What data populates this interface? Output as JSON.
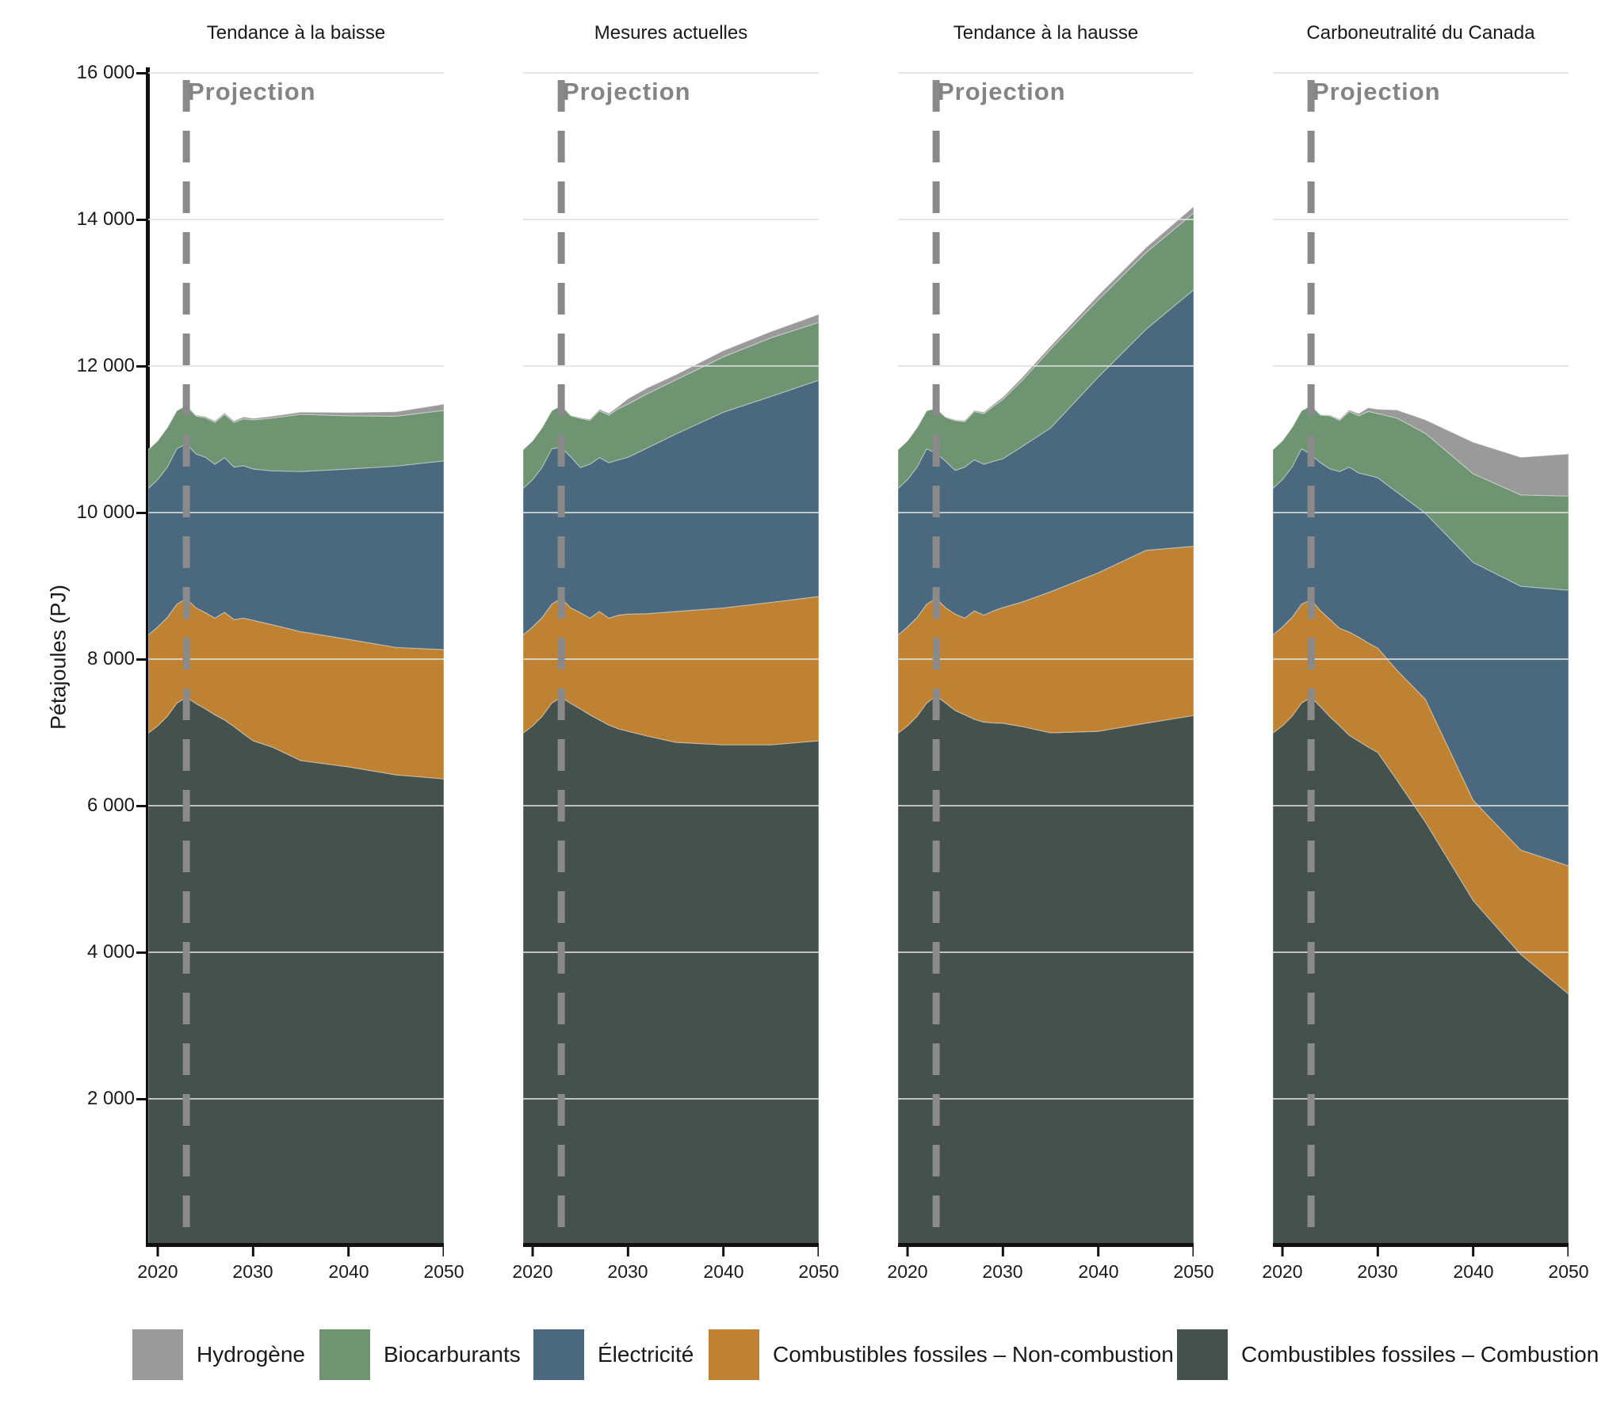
{
  "projection": {
    "label": "Projection",
    "start_year": 2023
  },
  "y_axis": {
    "title": "Pétajoules (PJ)",
    "ticks": [
      "16 000",
      "14 000",
      "12 000",
      "10 000",
      "8 000",
      "6 000",
      "4 000",
      "2 000"
    ]
  },
  "x_axis": {
    "ticks": [
      "2020",
      "2030",
      "2040",
      "2050"
    ]
  },
  "colors": {
    "gridline": "#e0e0e0",
    "axis": "#111111",
    "projection_line": "#8a8a8a",
    "projection_text": "#848484"
  },
  "legend": [
    {
      "id": "hydrogene",
      "label": "Hydrogène",
      "color": "#9a9a9a"
    },
    {
      "id": "biocarburants",
      "label": "Biocarburants",
      "color": "#6e9471"
    },
    {
      "id": "electricite",
      "label": "Électricité",
      "color": "#4a697e"
    },
    {
      "id": "fossiles_non_combustion",
      "label": "Combustibles fossiles – Non-combustion",
      "color": "#bf8132"
    },
    {
      "id": "fossiles_combustion",
      "label": "Combustibles fossiles – Combustion",
      "color": "#45514c"
    }
  ],
  "chart_data": {
    "type": "area",
    "stacked": true,
    "ylabel": "Pétajoules (PJ)",
    "ylim": [
      0,
      16000
    ],
    "y_gridlines": [
      2000,
      4000,
      6000,
      8000,
      10000,
      12000,
      14000,
      16000
    ],
    "x": [
      2019,
      2020,
      2021,
      2022,
      2023,
      2024,
      2025,
      2026,
      2027,
      2028,
      2029,
      2030,
      2032,
      2035,
      2040,
      2045,
      2050
    ],
    "x_range": [
      2019,
      2050
    ],
    "x_ticks": [
      2020,
      2030,
      2040,
      2050
    ],
    "projection_start_year": 2023,
    "stack_order_bottom_to_top": [
      "fossiles_combustion",
      "fossiles_non_combustion",
      "electricite",
      "biocarburants",
      "hydrogene"
    ],
    "units": "PJ",
    "panels": [
      {
        "title": "Tendance à la baisse",
        "values": {
          "fossiles_combustion": [
            6990,
            7090,
            7220,
            7400,
            7480,
            7395,
            7320,
            7240,
            7170,
            7080,
            6980,
            6885,
            6800,
            6615,
            6530,
            6420,
            6365
          ],
          "fossiles_non_combustion": [
            1340,
            1350,
            1350,
            1350,
            1350,
            1305,
            1315,
            1320,
            1470,
            1460,
            1580,
            1645,
            1670,
            1760,
            1740,
            1740,
            1765
          ],
          "electricite": [
            2000,
            2010,
            2050,
            2120,
            2110,
            2100,
            2120,
            2100,
            2110,
            2080,
            2080,
            2065,
            2100,
            2185,
            2325,
            2475,
            2575
          ],
          "biocarburants": [
            530,
            530,
            540,
            520,
            520,
            520,
            540,
            570,
            590,
            610,
            640,
            670,
            720,
            780,
            725,
            680,
            690
          ],
          "hydrogene": [
            0,
            0,
            0,
            0,
            5,
            10,
            15,
            20,
            20,
            20,
            25,
            20,
            25,
            30,
            45,
            60,
            85
          ]
        }
      },
      {
        "title": "Mesures actuelles",
        "values": {
          "fossiles_combustion": [
            6990,
            7090,
            7220,
            7400,
            7480,
            7395,
            7320,
            7240,
            7170,
            7100,
            7050,
            7015,
            6950,
            6865,
            6830,
            6830,
            6885
          ],
          "fossiles_non_combustion": [
            1340,
            1350,
            1350,
            1350,
            1350,
            1305,
            1315,
            1320,
            1480,
            1460,
            1550,
            1600,
            1670,
            1785,
            1870,
            1945,
            1970
          ],
          "electricite": [
            2000,
            2010,
            2050,
            2120,
            2060,
            2060,
            1980,
            2100,
            2100,
            2120,
            2120,
            2140,
            2260,
            2420,
            2670,
            2810,
            2950
          ],
          "biocarburants": [
            530,
            530,
            540,
            520,
            570,
            560,
            670,
            600,
            640,
            650,
            700,
            725,
            740,
            740,
            755,
            800,
            790
          ],
          "hydrogene": [
            0,
            0,
            0,
            0,
            0,
            5,
            10,
            15,
            20,
            25,
            30,
            75,
            80,
            70,
            85,
            85,
            110
          ]
        }
      },
      {
        "title": "Tendance à la hausse",
        "values": {
          "fossiles_combustion": [
            6990,
            7090,
            7220,
            7400,
            7500,
            7400,
            7300,
            7240,
            7180,
            7140,
            7130,
            7125,
            7080,
            6995,
            7015,
            7125,
            7230
          ],
          "fossiles_non_combustion": [
            1340,
            1350,
            1350,
            1350,
            1330,
            1300,
            1315,
            1320,
            1480,
            1460,
            1530,
            1580,
            1700,
            1925,
            2165,
            2360,
            2310
          ],
          "electricite": [
            2000,
            2010,
            2050,
            2120,
            1980,
            2000,
            1960,
            2060,
            2060,
            2060,
            2040,
            2030,
            2120,
            2235,
            2670,
            3015,
            3500
          ],
          "biocarburants": [
            530,
            530,
            540,
            520,
            610,
            600,
            680,
            620,
            660,
            690,
            750,
            810,
            900,
            1075,
            1055,
            1045,
            1050
          ],
          "hydrogene": [
            0,
            0,
            0,
            0,
            0,
            5,
            10,
            15,
            15,
            20,
            25,
            30,
            40,
            40,
            60,
            70,
            85
          ]
        }
      },
      {
        "title": "Carboneutralité du Canada",
        "values": {
          "fossiles_combustion": [
            6990,
            7090,
            7220,
            7400,
            7480,
            7350,
            7210,
            7090,
            6960,
            6880,
            6800,
            6725,
            6350,
            5775,
            4705,
            3970,
            3430
          ],
          "fossiles_non_combustion": [
            1340,
            1350,
            1350,
            1350,
            1330,
            1310,
            1330,
            1330,
            1410,
            1420,
            1420,
            1425,
            1500,
            1675,
            1370,
            1425,
            1750
          ],
          "electricite": [
            2000,
            2010,
            2050,
            2120,
            1980,
            2020,
            2055,
            2140,
            2250,
            2240,
            2290,
            2325,
            2430,
            2540,
            3245,
            3600,
            3760
          ],
          "biocarburants": [
            530,
            530,
            540,
            520,
            670,
            650,
            725,
            700,
            760,
            780,
            870,
            875,
            1010,
            1090,
            1210,
            1245,
            1285
          ],
          "hydrogene": [
            0,
            0,
            0,
            0,
            0,
            5,
            10,
            15,
            20,
            30,
            50,
            60,
            110,
            185,
            430,
            515,
            575
          ]
        }
      }
    ]
  }
}
